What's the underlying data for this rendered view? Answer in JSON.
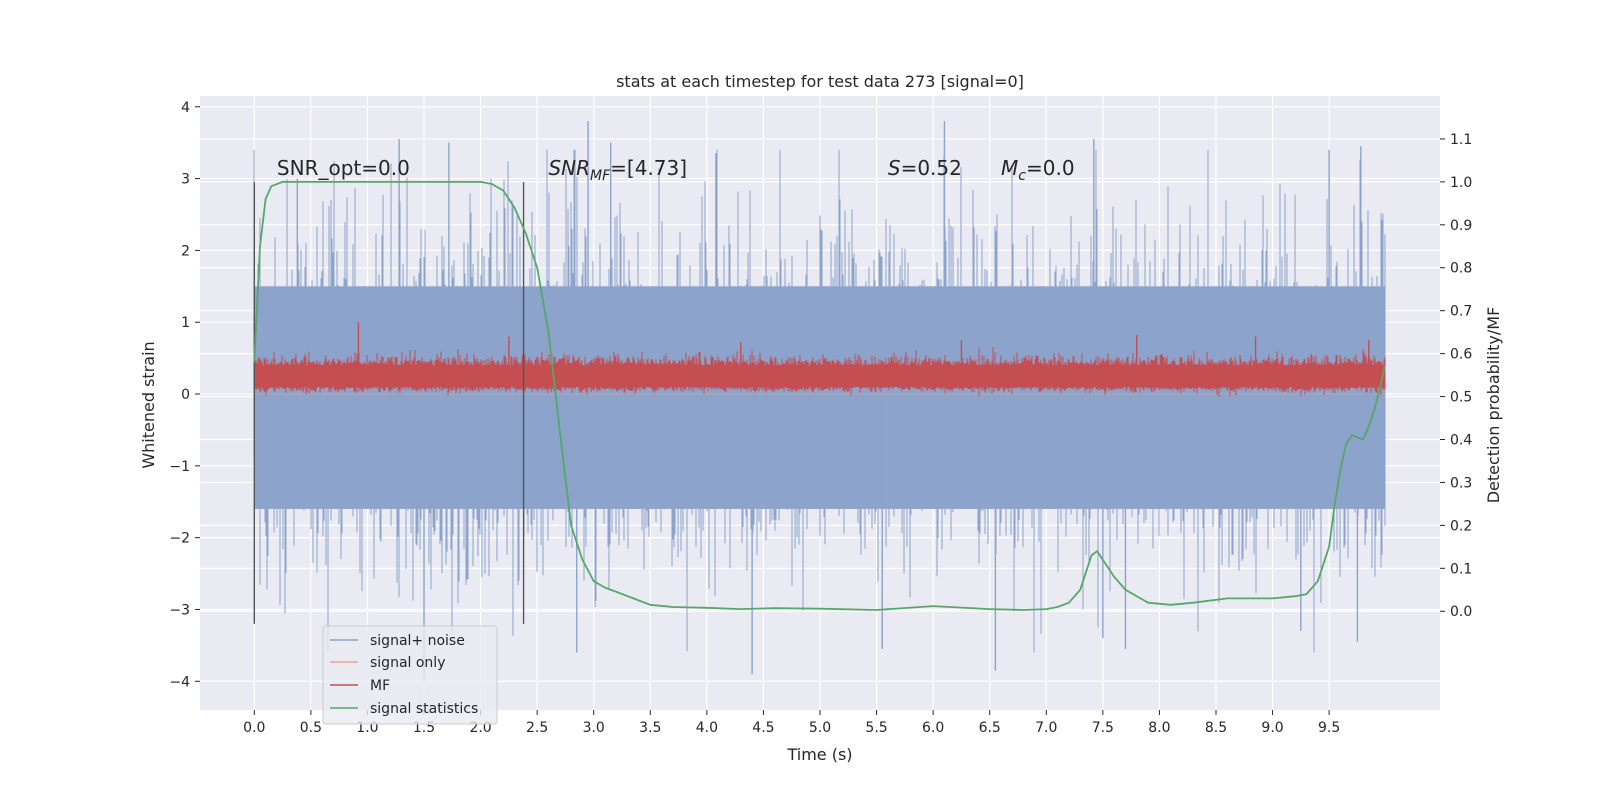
{
  "chart_data": {
    "type": "line",
    "title": "stats at each timestep for test data 273 [signal=0]",
    "xlabel": "Time (s)",
    "ylabel": "Whitened strain",
    "y2label": "Detection probability/MF",
    "xlim": [
      -0.48,
      10.48
    ],
    "ylim": [
      -4.4,
      4.15
    ],
    "y2lim": [
      -0.23,
      1.2
    ],
    "x_ticks": [
      0.0,
      0.5,
      1.0,
      1.5,
      2.0,
      2.5,
      3.0,
      3.5,
      4.0,
      4.5,
      5.0,
      5.5,
      6.0,
      6.5,
      7.0,
      7.5,
      8.0,
      8.5,
      9.0,
      9.5
    ],
    "x_tick_labels": [
      "0.0",
      "0.5",
      "1.0",
      "1.5",
      "2.0",
      "2.5",
      "3.0",
      "3.5",
      "4.0",
      "4.5",
      "5.0",
      "5.5",
      "6.0",
      "6.5",
      "7.0",
      "7.5",
      "8.0",
      "8.5",
      "9.0",
      "9.5"
    ],
    "y_ticks": [
      -4,
      -3,
      -2,
      -1,
      0,
      1,
      2,
      3,
      4
    ],
    "y_tick_labels": [
      "−4",
      "−3",
      "−2",
      "−1",
      "0",
      "1",
      "2",
      "3",
      "4"
    ],
    "y2_ticks": [
      0.0,
      0.1,
      0.2,
      0.3,
      0.4,
      0.5,
      0.6,
      0.7,
      0.8,
      0.9,
      1.0,
      1.1
    ],
    "y2_tick_labels": [
      "0.0",
      "0.1",
      "0.2",
      "0.3",
      "0.4",
      "0.5",
      "0.6",
      "0.7",
      "0.8",
      "0.9",
      "1.0",
      "1.1"
    ],
    "grid": true,
    "legend_position": "lower-left",
    "annotations": [
      {
        "text": "SNR_opt=0.0",
        "x": 0.2,
        "y": 3.05
      },
      {
        "text": "SNR_MF=[4.73]",
        "x": 2.6,
        "y": 3.05
      },
      {
        "text": "S=0.52",
        "x": 5.6,
        "y": 3.05
      },
      {
        "text": "M_c=0.0",
        "x": 6.6,
        "y": 3.05
      }
    ],
    "vertical_markers": [
      {
        "x": 0.0,
        "ymin": -3.2,
        "ymax": 2.95
      },
      {
        "x": 2.38,
        "ymin": -3.2,
        "ymax": 2.95
      }
    ],
    "series": [
      {
        "name": "signal+ noise",
        "color": "#8ca3cc",
        "x_range": [
          0.0,
          9.99
        ],
        "envelope_p99": [
          -2.5,
          2.3
        ],
        "envelope_p90": [
          -1.6,
          1.5
        ],
        "peaks_max": [
          {
            "x": 0.38,
            "y": 3.0
          },
          {
            "x": 1.28,
            "y": 3.55
          },
          {
            "x": 1.72,
            "y": 3.5
          },
          {
            "x": 2.95,
            "y": 3.8
          },
          {
            "x": 3.15,
            "y": 3.5
          },
          {
            "x": 4.08,
            "y": 3.35
          },
          {
            "x": 6.1,
            "y": 3.8
          },
          {
            "x": 7.42,
            "y": 3.55
          },
          {
            "x": 9.5,
            "y": 3.4
          },
          {
            "x": 9.78,
            "y": 3.45
          }
        ],
        "peaks_min": [
          {
            "x": 1.5,
            "y": -4.0
          },
          {
            "x": 2.85,
            "y": -3.6
          },
          {
            "x": 4.4,
            "y": -3.9
          },
          {
            "x": 5.55,
            "y": -3.55
          },
          {
            "x": 6.55,
            "y": -3.85
          },
          {
            "x": 7.5,
            "y": -3.4
          },
          {
            "x": 7.7,
            "y": -3.55
          },
          {
            "x": 9.25,
            "y": -3.3
          },
          {
            "x": 9.75,
            "y": -3.45
          }
        ]
      },
      {
        "name": "signal only",
        "color": "#e8a88a",
        "x_range": [
          0.0,
          9.99
        ],
        "values_constant": 0.0
      },
      {
        "name": "MF",
        "color": "#c44e52",
        "x_range": [
          0.0,
          9.99
        ],
        "band": [
          0.05,
          0.45
        ],
        "peaks_max": [
          {
            "x": 0.92,
            "y": 1.0
          },
          {
            "x": 2.25,
            "y": 0.8
          },
          {
            "x": 4.3,
            "y": 0.72
          },
          {
            "x": 6.25,
            "y": 0.75
          },
          {
            "x": 7.8,
            "y": 0.82
          },
          {
            "x": 8.85,
            "y": 0.8
          },
          {
            "x": 9.85,
            "y": 0.75
          }
        ]
      },
      {
        "name": "signal statistics",
        "color": "#55a868",
        "axis": "y2",
        "x": [
          0.0,
          0.05,
          0.1,
          0.15,
          0.25,
          0.5,
          1.0,
          1.5,
          2.0,
          2.1,
          2.2,
          2.3,
          2.4,
          2.5,
          2.6,
          2.7,
          2.8,
          2.9,
          3.0,
          3.1,
          3.2,
          3.3,
          3.5,
          3.7,
          4.0,
          4.3,
          4.6,
          5.0,
          5.5,
          6.0,
          6.5,
          6.8,
          7.0,
          7.1,
          7.2,
          7.3,
          7.4,
          7.45,
          7.5,
          7.6,
          7.7,
          7.9,
          8.1,
          8.3,
          8.6,
          9.0,
          9.2,
          9.3,
          9.4,
          9.5,
          9.55,
          9.6,
          9.65,
          9.7,
          9.8,
          9.85,
          9.9,
          9.95,
          9.99
        ],
        "values": [
          0.58,
          0.85,
          0.96,
          0.99,
          1.0,
          1.0,
          1.0,
          1.0,
          1.0,
          0.995,
          0.98,
          0.94,
          0.88,
          0.8,
          0.65,
          0.42,
          0.2,
          0.12,
          0.07,
          0.055,
          0.045,
          0.035,
          0.015,
          0.01,
          0.008,
          0.005,
          0.007,
          0.006,
          0.003,
          0.012,
          0.005,
          0.003,
          0.005,
          0.01,
          0.02,
          0.05,
          0.13,
          0.14,
          0.12,
          0.08,
          0.05,
          0.02,
          0.015,
          0.02,
          0.03,
          0.03,
          0.035,
          0.04,
          0.07,
          0.15,
          0.25,
          0.33,
          0.39,
          0.41,
          0.4,
          0.43,
          0.47,
          0.52,
          0.57
        ]
      }
    ]
  }
}
